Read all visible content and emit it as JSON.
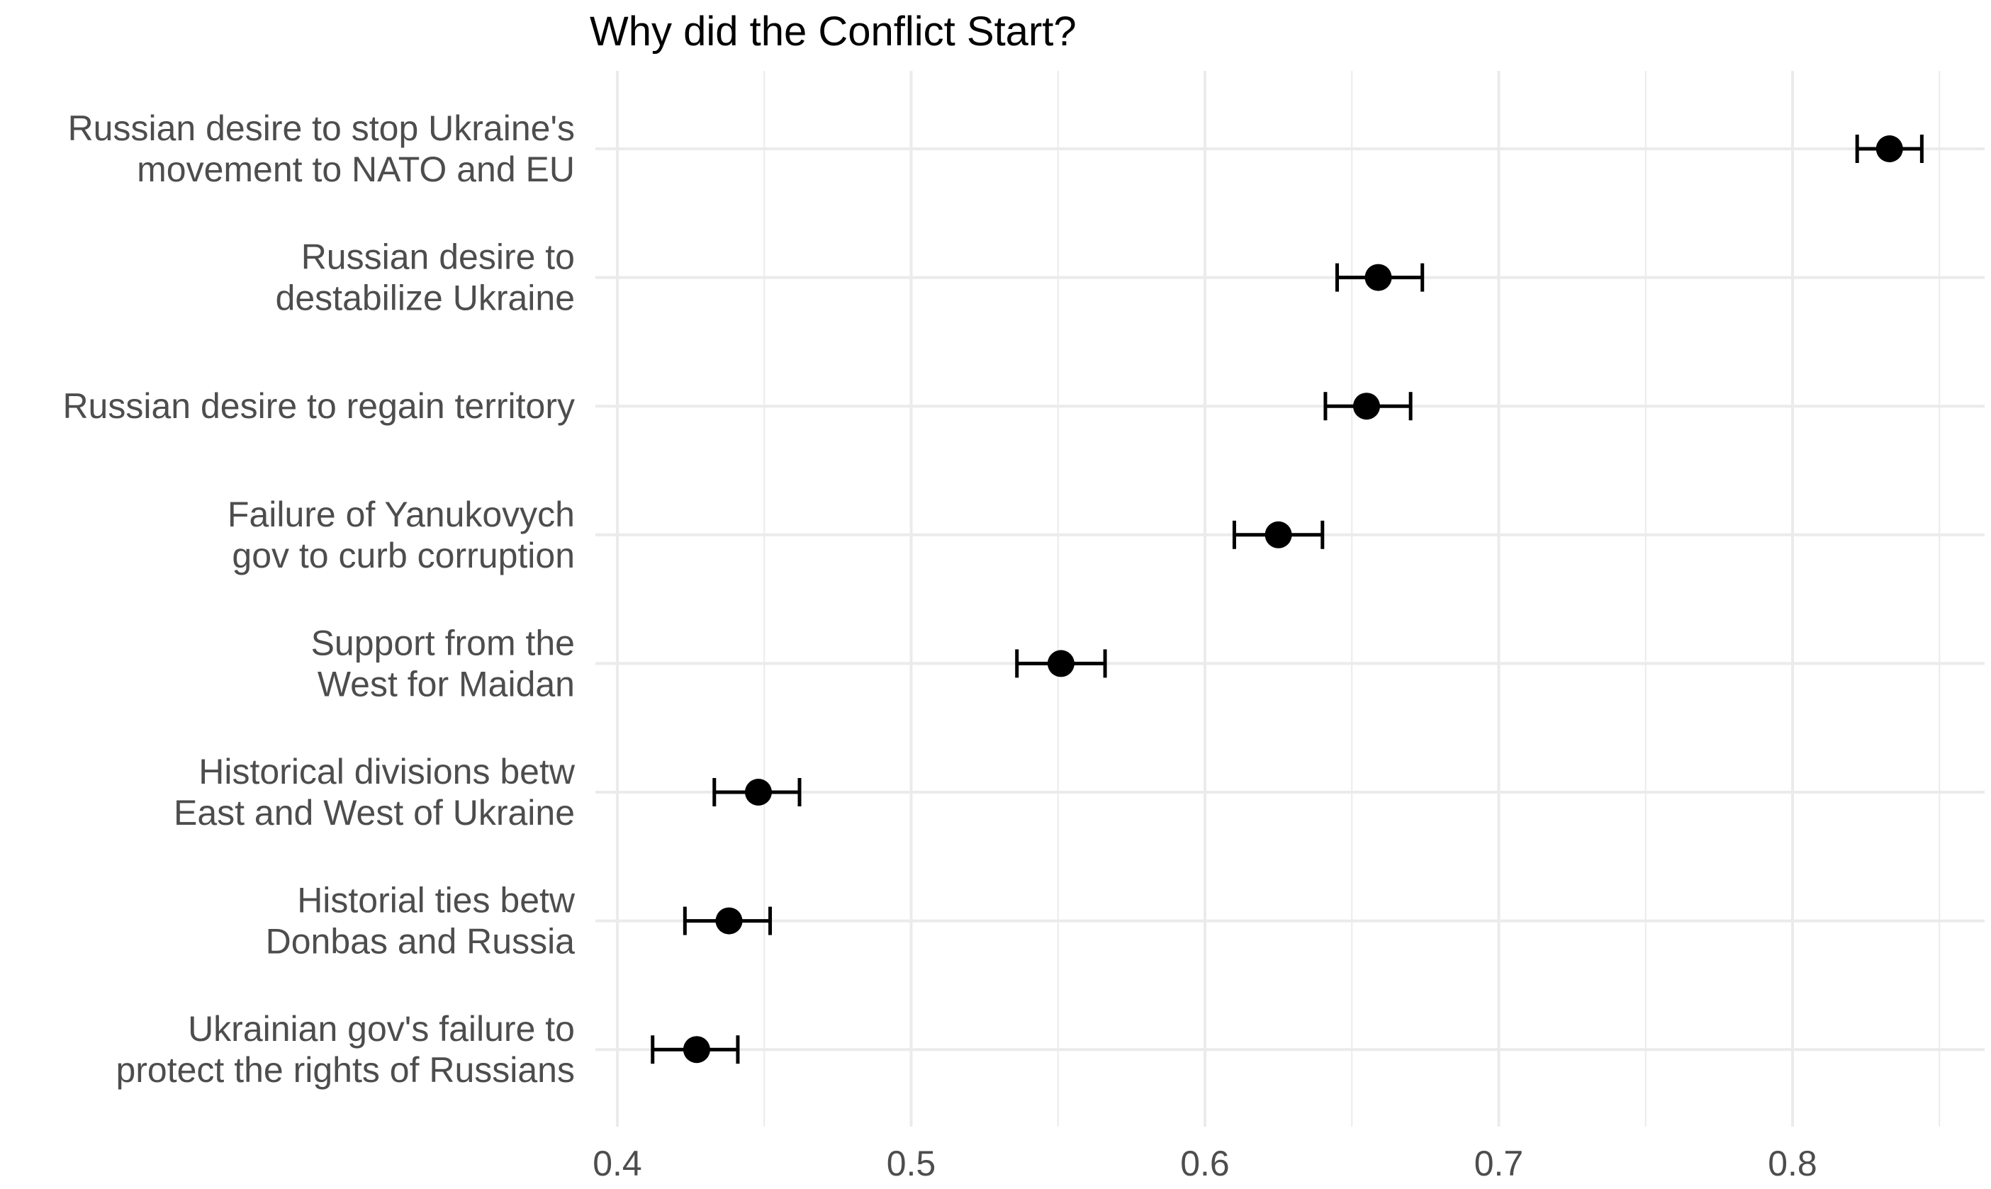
{
  "chart_data": {
    "type": "dot-errorbar",
    "title": "Why did the Conflict Start?",
    "xlabel": "",
    "ylabel": "",
    "xlim": [
      0.39,
      0.855
    ],
    "x_ticks": [
      0.4,
      0.5,
      0.6,
      0.7,
      0.8
    ],
    "x_tick_labels": [
      "0.4",
      "0.5",
      "0.6",
      "0.7",
      "0.8"
    ],
    "grid": true,
    "categories": [
      [
        "Russian desire to stop Ukraine's",
        "movement to NATO and EU"
      ],
      [
        "Russian desire to",
        "destabilize Ukraine"
      ],
      [
        "Russian desire to regain territory"
      ],
      [
        "Failure of Yanukovych",
        "gov to curb corruption"
      ],
      [
        "Support from the",
        "West for Maidan"
      ],
      [
        "Historical divisions betw",
        "East and West of Ukraine"
      ],
      [
        "Historial ties betw",
        "Donbas and Russia"
      ],
      [
        "Ukrainian gov's failure to",
        "protect the rights of Russians"
      ]
    ],
    "values": [
      0.833,
      0.659,
      0.655,
      0.625,
      0.551,
      0.448,
      0.438,
      0.427
    ],
    "lower": [
      0.822,
      0.645,
      0.641,
      0.61,
      0.536,
      0.433,
      0.423,
      0.412
    ],
    "upper": [
      0.844,
      0.674,
      0.67,
      0.64,
      0.566,
      0.462,
      0.452,
      0.441
    ],
    "colors": {
      "point": "#000000",
      "grid": "#ebebeb",
      "label": "#4d4d4d"
    }
  }
}
